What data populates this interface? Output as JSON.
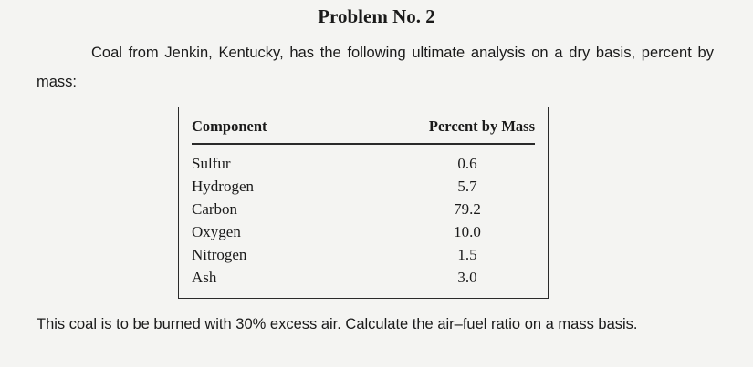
{
  "document": {
    "title": "Problem No. 2",
    "intro": "Coal from Jenkin, Kentucky, has the following ultimate analysis on a dry basis, percent by mass:",
    "table": {
      "headers": [
        "Component",
        "Percent by Mass"
      ],
      "rows": [
        {
          "component": "Sulfur",
          "percent": "0.6"
        },
        {
          "component": "Hydrogen",
          "percent": "5.7"
        },
        {
          "component": "Carbon",
          "percent": "79.2"
        },
        {
          "component": "Oxygen",
          "percent": "10.0"
        },
        {
          "component": "Nitrogen",
          "percent": "1.5"
        },
        {
          "component": "Ash",
          "percent": "3.0"
        }
      ]
    },
    "question": "This coal is to be burned with 30% excess air. Calculate the air–fuel ratio on a mass basis."
  }
}
